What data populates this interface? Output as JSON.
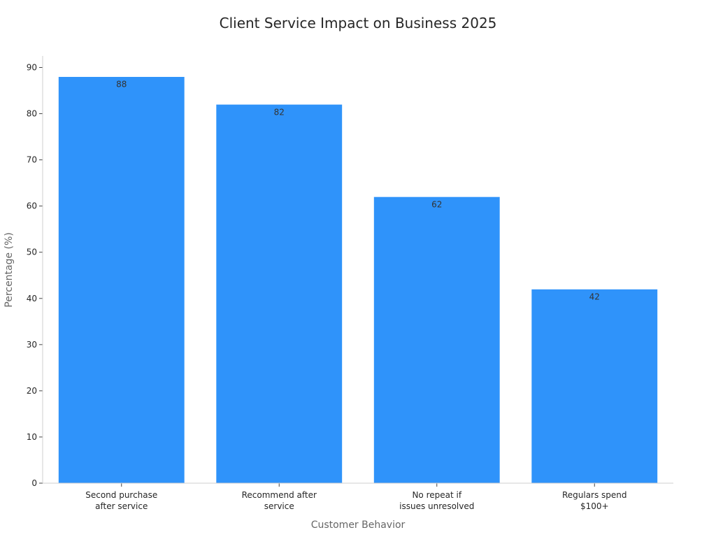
{
  "chart_data": {
    "type": "bar",
    "title": "Client Service Impact on Business 2025",
    "xlabel": "Customer Behavior",
    "ylabel": "Percentage (%)",
    "categories": [
      [
        "Second purchase",
        "after service"
      ],
      [
        "Recommend after",
        "service"
      ],
      [
        "No repeat if",
        "issues unresolved"
      ],
      [
        "Regulars spend",
        "$100+"
      ]
    ],
    "values": [
      88,
      82,
      62,
      42
    ],
    "data_labels": [
      "88",
      "82",
      "62",
      "42"
    ],
    "yticks": [
      0,
      10,
      20,
      30,
      40,
      50,
      60,
      70,
      80,
      90
    ],
    "ylim": [
      0,
      92.5
    ],
    "grid": false,
    "legend": "none",
    "bar_color": "#2f93fa"
  }
}
